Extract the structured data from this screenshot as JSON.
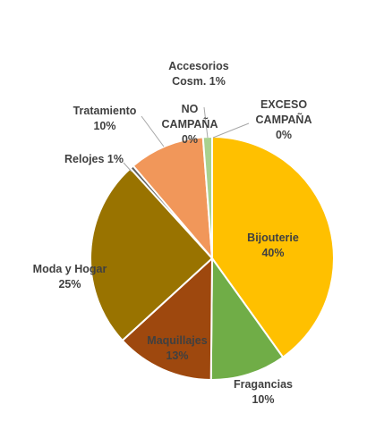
{
  "chart_data": {
    "type": "pie",
    "title": "",
    "slices": [
      {
        "name": "Bijouterie",
        "value": 40,
        "label": "40%",
        "color": "#FFC000"
      },
      {
        "name": "Fragancias",
        "value": 10,
        "label": "10%",
        "color": "#70AD47"
      },
      {
        "name": "Maquillajes",
        "value": 13,
        "label": "13%",
        "color": "#9E480E"
      },
      {
        "name": "Moda y Hogar",
        "value": 25,
        "label": "25%",
        "color": "#997300"
      },
      {
        "name": "Relojes",
        "value": 0.5,
        "label": "1%",
        "color": "#636363"
      },
      {
        "name": "Tratamiento",
        "value": 10,
        "label": "10%",
        "color": "#F1975A"
      },
      {
        "name": "NO CAMPAÑA",
        "value": 0,
        "label": "0%",
        "color": "#5B9BD5"
      },
      {
        "name": "Accesorios Cosm.",
        "value": 1.2,
        "label": "1%",
        "color": "#A9D18E"
      },
      {
        "name": "EXCESO CAMPAÑA",
        "value": 0,
        "label": "0%",
        "color": "#264478"
      }
    ],
    "legend": "none"
  }
}
